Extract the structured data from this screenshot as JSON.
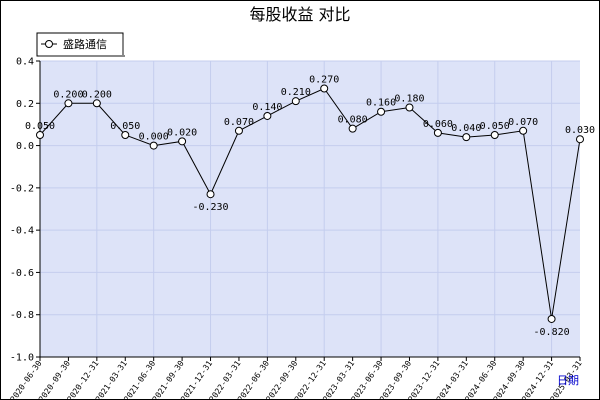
{
  "chart_data": {
    "type": "line",
    "title": "每股收益 对比",
    "xlabel": "日期",
    "ylabel": "",
    "ylim": [
      -1.0,
      0.4
    ],
    "yticks": [
      "0.4",
      "0.2",
      "0.0",
      "-0.2",
      "-0.4",
      "-0.6",
      "-0.8",
      "-1.0"
    ],
    "ytick_values": [
      0.4,
      0.2,
      0.0,
      -0.2,
      -0.4,
      -0.6,
      -0.8,
      -1.0
    ],
    "categories": [
      "2020-06-30",
      "2020-09-30",
      "2020-12-31",
      "2021-03-31",
      "2021-06-30",
      "2021-09-30",
      "2021-12-31",
      "2022-03-31",
      "2022-06-30",
      "2022-09-30",
      "2022-12-31",
      "2023-03-31",
      "2023-06-30",
      "2023-09-30",
      "2023-12-31",
      "2024-03-31",
      "2024-06-30",
      "2024-09-30",
      "2024-12-31",
      "2025-03-31"
    ],
    "series": [
      {
        "name": "盛路通信",
        "values": [
          0.05,
          0.2,
          0.2,
          0.05,
          0.0,
          0.02,
          -0.23,
          0.07,
          0.14,
          0.21,
          0.27,
          0.08,
          0.16,
          0.18,
          0.06,
          0.04,
          0.05,
          0.07,
          -0.82,
          0.03
        ],
        "labels": [
          "0.050",
          "0.200",
          "0.200",
          "0.050",
          "0.000",
          "0.020",
          "-0.230",
          "0.070",
          "0.140",
          "0.210",
          "0.270",
          "0.080",
          "0.160",
          "0.180",
          "0.060",
          "0.040",
          "0.050",
          "0.070",
          "-0.820",
          "0.030"
        ],
        "color": "#000000"
      }
    ],
    "grid": true,
    "legend_position": "top-left",
    "plot_background": "#dde3f8",
    "grid_color": "#c4cdee"
  }
}
